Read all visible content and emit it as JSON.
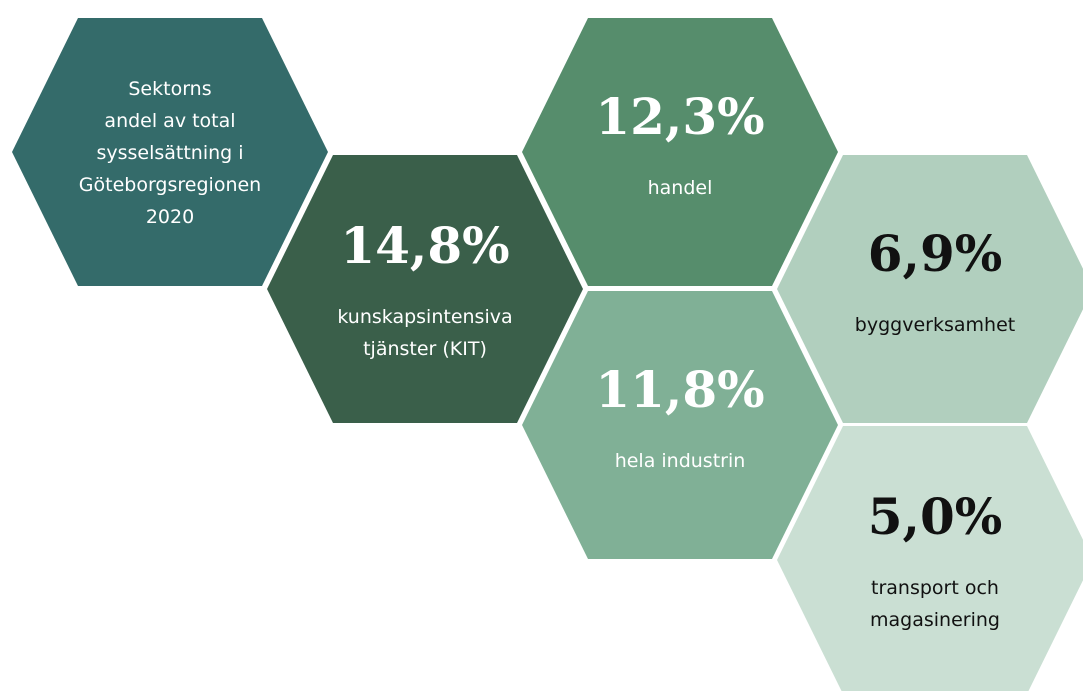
{
  "intro": {
    "lines": [
      "Sektorns",
      "andel av total",
      "sysselsättning i",
      "Göteborgsregionen",
      "2020"
    ]
  },
  "nodes": [
    {
      "value": "14,8%",
      "lines": [
        "kunskapsintensiva",
        "tjänster (KIT)"
      ]
    },
    {
      "value": "12,3%",
      "lines": [
        "handel"
      ]
    },
    {
      "value": "11,8%",
      "lines": [
        "hela industrin"
      ]
    },
    {
      "value": "6,9%",
      "lines": [
        "byggverksamhet"
      ]
    },
    {
      "value": "5,0%",
      "lines": [
        "transport och",
        "magasinering"
      ]
    }
  ]
}
